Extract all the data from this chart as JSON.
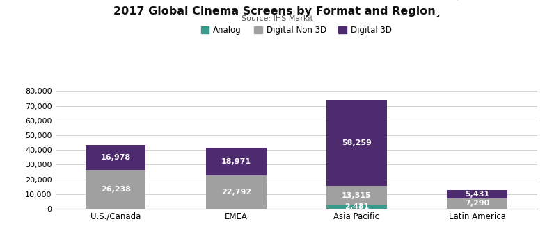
{
  "title": "2017 Global Cinema Screens by Format and Region¸",
  "subtitle": "Source: IHS Markit",
  "categories": [
    "U.S./Canada",
    "EMEA",
    "Asia Pacific",
    "Latin America"
  ],
  "analog": [
    0,
    0,
    2481,
    0
  ],
  "digital_non3d": [
    26238,
    22792,
    13315,
    7290
  ],
  "digital_3d": [
    16978,
    18971,
    58259,
    5431
  ],
  "color_analog": "#3a9a8c",
  "color_non3d": "#a0a0a0",
  "color_3d": "#4e2a6e",
  "ylim": [
    0,
    80000
  ],
  "yticks": [
    0,
    10000,
    20000,
    30000,
    40000,
    50000,
    60000,
    70000,
    80000
  ],
  "legend_labels": [
    "Analog",
    "Digital Non 3D",
    "Digital 3D"
  ],
  "background_color": "#ffffff",
  "label_fontsize": 8,
  "title_fontsize": 11.5,
  "subtitle_fontsize": 8
}
